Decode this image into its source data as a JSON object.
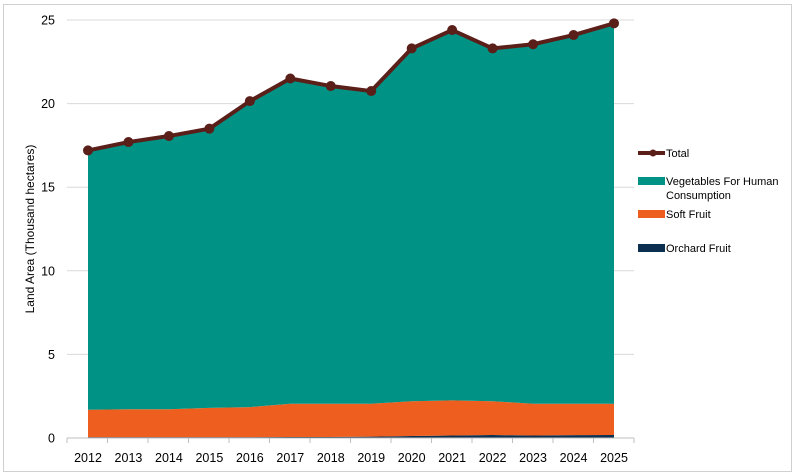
{
  "chart_data": {
    "type": "area",
    "stacked": true,
    "title": "",
    "xlabel": "",
    "ylabel": "Land Area (Thousand hectares)",
    "ylim": [
      0,
      25
    ],
    "yticks": [
      0,
      5,
      10,
      15,
      20,
      25
    ],
    "grid": true,
    "legend_position": "right",
    "categories": [
      "2012",
      "2013",
      "2014",
      "2015",
      "2016",
      "2017",
      "2018",
      "2019",
      "2020",
      "2021",
      "2022",
      "2023",
      "2024",
      "2025"
    ],
    "series": [
      {
        "name": "Orchard Fruit",
        "type": "area",
        "color": "#0b2f4f",
        "values": [
          0.05,
          0.05,
          0.05,
          0.05,
          0.05,
          0.06,
          0.06,
          0.08,
          0.12,
          0.15,
          0.18,
          0.15,
          0.17,
          0.18
        ]
      },
      {
        "name": "Soft Fruit",
        "type": "area",
        "color": "#ee5f1f",
        "values": [
          1.64,
          1.67,
          1.67,
          1.75,
          1.8,
          1.99,
          1.99,
          1.97,
          2.08,
          2.1,
          2.02,
          1.9,
          1.88,
          1.87
        ]
      },
      {
        "name": "Vegetables For Human Consumption",
        "type": "area",
        "color": "#009385",
        "values": [
          15.51,
          15.98,
          16.34,
          16.7,
          18.3,
          19.45,
          19.0,
          18.7,
          21.1,
          22.15,
          21.1,
          21.5,
          22.05,
          22.75
        ]
      },
      {
        "name": "Total",
        "type": "line",
        "color": "#5b1f1a",
        "values": [
          17.2,
          17.7,
          18.06,
          18.5,
          20.15,
          21.5,
          21.05,
          20.75,
          23.3,
          24.4,
          23.3,
          23.55,
          24.1,
          24.8
        ]
      }
    ],
    "legend_order": [
      "Total",
      "Vegetables For Human Consumption",
      "Soft Fruit",
      "Orchard Fruit"
    ]
  }
}
